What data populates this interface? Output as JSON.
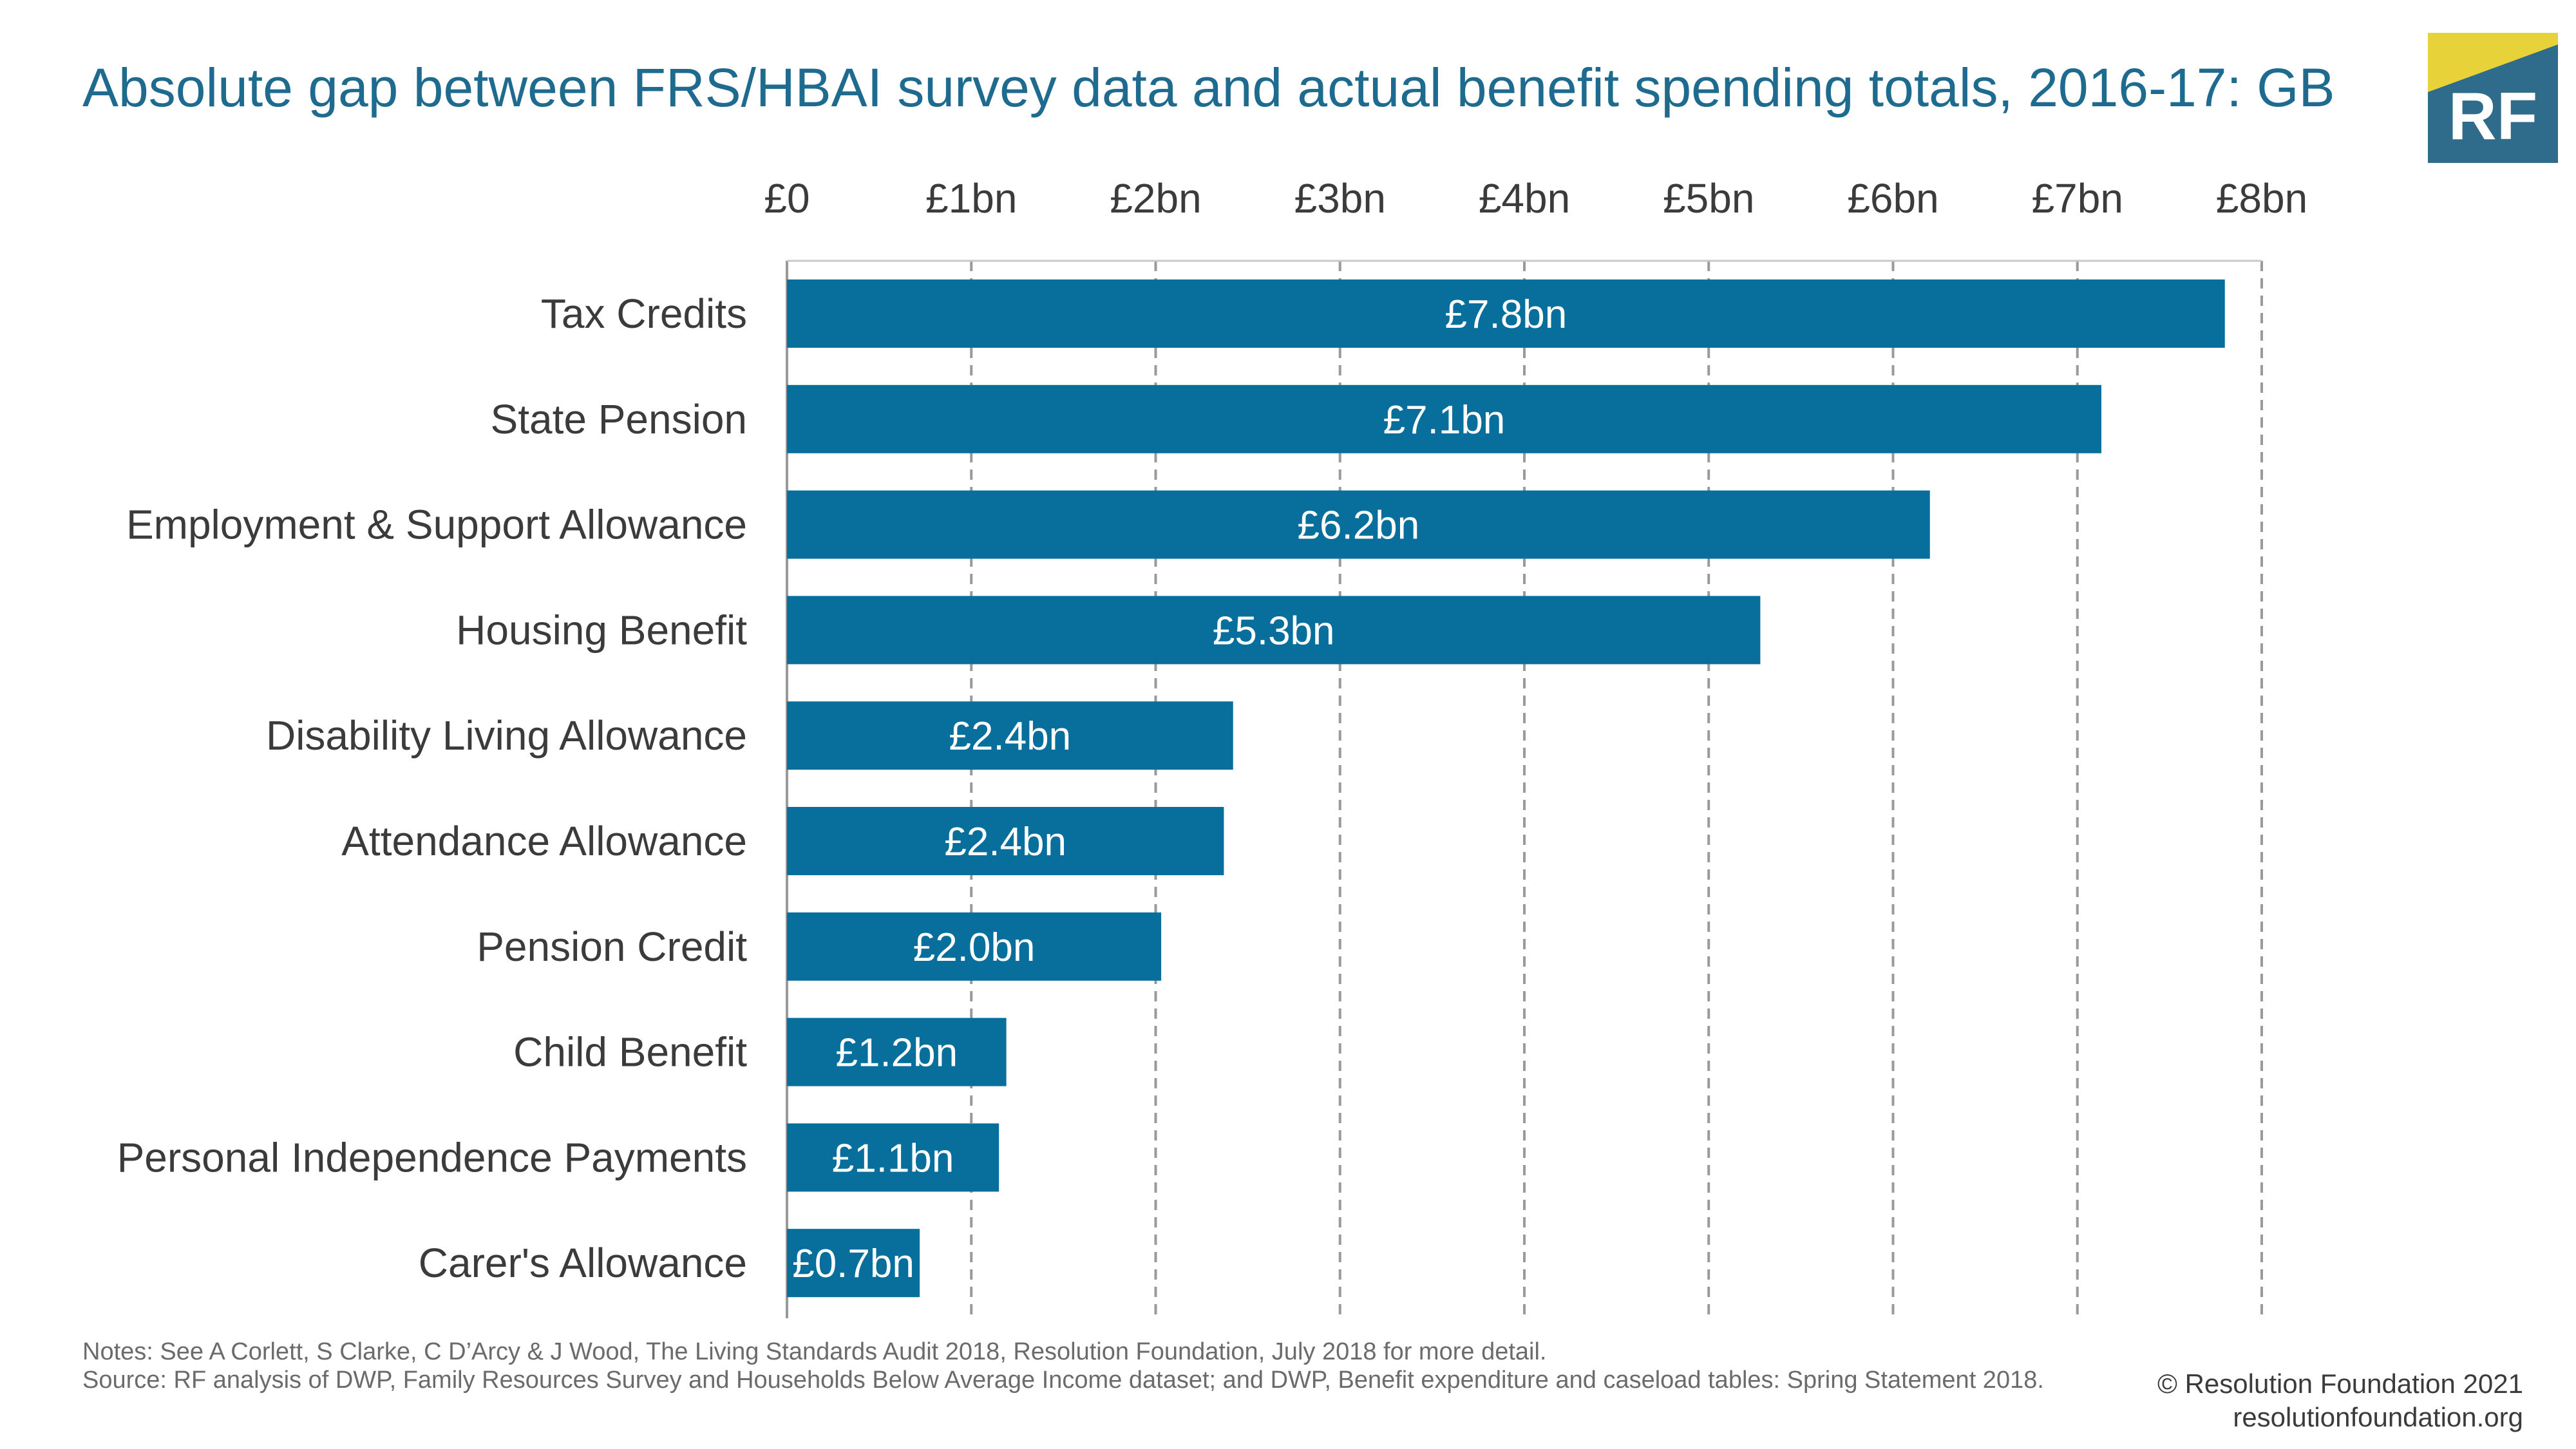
{
  "title": "Absolute gap between FRS/HBAI survey data and actual benefit spending totals, 2016-17: GB",
  "logo": {
    "text": "RF",
    "colors": {
      "base": "#2f6c8c",
      "accent": "#e8d23a"
    }
  },
  "colors": {
    "bar": "#086f9c",
    "bar_label": "#ffffff",
    "grid": "#9a9a9a",
    "tick_text": "#3b3b3b",
    "title": "#1f6b8f"
  },
  "chart_data": {
    "type": "bar",
    "orientation": "horizontal",
    "categories": [
      "Tax Credits",
      "State Pension",
      "Employment & Support Allowance",
      "Housing Benefit",
      "Disability Living Allowance",
      "Attendance Allowance",
      "Pension Credit",
      "Child Benefit",
      "Personal Independence Payments",
      "Carer's Allowance"
    ],
    "values": [
      7.8,
      7.13,
      6.2,
      5.28,
      2.42,
      2.37,
      2.03,
      1.19,
      1.15,
      0.72
    ],
    "data_labels": [
      "£7.8bn",
      "£7.1bn",
      "£6.2bn",
      "£5.3bn",
      "£2.4bn",
      "£2.4bn",
      "£2.0bn",
      "£1.2bn",
      "£1.1bn",
      "£0.7bn"
    ],
    "x_ticks": [
      0,
      1,
      2,
      3,
      4,
      5,
      6,
      7,
      8
    ],
    "x_tick_labels": [
      "£0",
      "£1bn",
      "£2bn",
      "£3bn",
      "£4bn",
      "£5bn",
      "£6bn",
      "£7bn",
      "£8bn"
    ],
    "xlim": [
      0,
      8
    ],
    "x_axis_position": "top",
    "grid": "vertical dashed",
    "title": "Absolute gap between FRS/HBAI survey data and actual benefit spending totals, 2016-17: GB",
    "xlabel": "",
    "ylabel": ""
  },
  "notes": {
    "line1": "Notes: See A Corlett, S Clarke, C D’Arcy & J Wood, The Living Standards Audit 2018, Resolution Foundation, July 2018 for more detail.",
    "line2": "Source: RF analysis of DWP, Family Resources Survey and Households Below Average Income dataset; and DWP, Benefit expenditure and caseload tables: Spring Statement 2018."
  },
  "footer": {
    "copyright": "© Resolution Foundation 2021",
    "website": "resolutionfoundation.org"
  }
}
